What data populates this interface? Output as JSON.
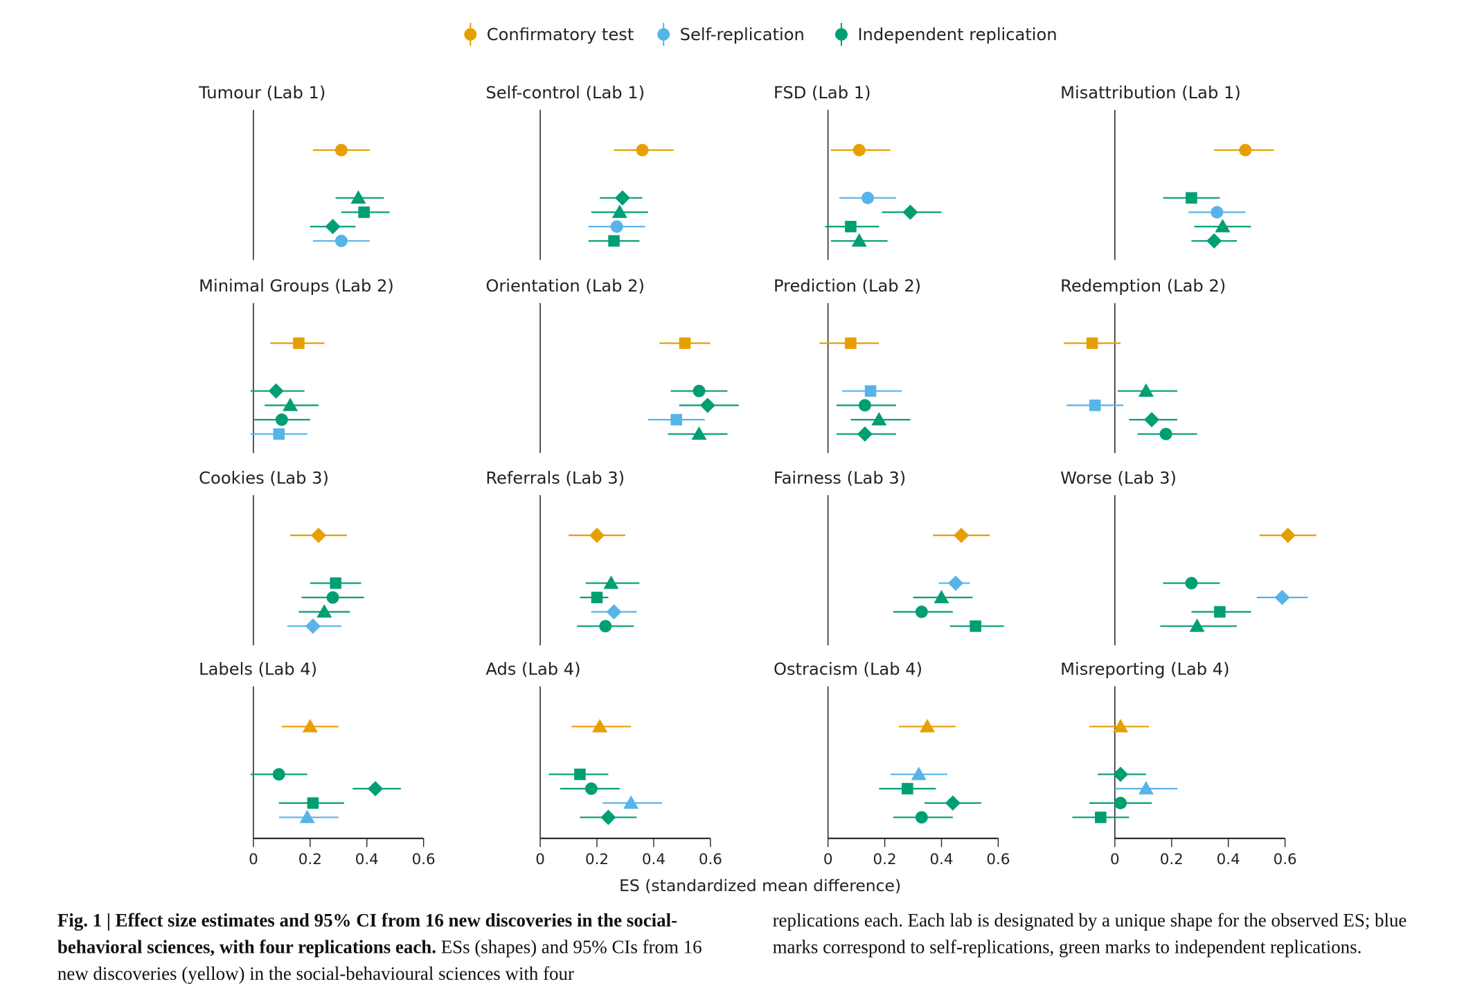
{
  "colors": {
    "confirmatory": "#E69F00",
    "self": "#56B4E9",
    "independent": "#009E73"
  },
  "legend": [
    {
      "key": "confirmatory",
      "label": "Confirmatory test"
    },
    {
      "key": "self",
      "label": "Self-replication"
    },
    {
      "key": "independent",
      "label": "Independent replication"
    }
  ],
  "chart_data": {
    "type": "forest",
    "xlabel": "ES (standardized mean difference)",
    "xlim": [
      -0.05,
      0.6
    ],
    "xticks": [
      0,
      0.2,
      0.4,
      0.6
    ],
    "xtick_labels": [
      "0",
      "0.2",
      "0.4",
      "0.6"
    ],
    "grid": false,
    "legend_position": "top",
    "panels": [
      {
        "title": "Tumour (Lab 1)",
        "points": [
          {
            "group": "confirmatory",
            "shape": "circle",
            "es": 0.31,
            "lo": 0.21,
            "hi": 0.41
          },
          {
            "group": "independent",
            "shape": "triangle",
            "es": 0.37,
            "lo": 0.29,
            "hi": 0.46
          },
          {
            "group": "independent",
            "shape": "square",
            "es": 0.39,
            "lo": 0.31,
            "hi": 0.48
          },
          {
            "group": "independent",
            "shape": "diamond",
            "es": 0.28,
            "lo": 0.2,
            "hi": 0.36
          },
          {
            "group": "self",
            "shape": "circle",
            "es": 0.31,
            "lo": 0.21,
            "hi": 0.41
          }
        ]
      },
      {
        "title": "Self-control (Lab 1)",
        "points": [
          {
            "group": "confirmatory",
            "shape": "circle",
            "es": 0.36,
            "lo": 0.26,
            "hi": 0.47
          },
          {
            "group": "independent",
            "shape": "diamond",
            "es": 0.29,
            "lo": 0.21,
            "hi": 0.36
          },
          {
            "group": "independent",
            "shape": "triangle",
            "es": 0.28,
            "lo": 0.18,
            "hi": 0.38
          },
          {
            "group": "self",
            "shape": "circle",
            "es": 0.27,
            "lo": 0.17,
            "hi": 0.37
          },
          {
            "group": "independent",
            "shape": "square",
            "es": 0.26,
            "lo": 0.17,
            "hi": 0.35
          }
        ]
      },
      {
        "title": "FSD (Lab 1)",
        "points": [
          {
            "group": "confirmatory",
            "shape": "circle",
            "es": 0.11,
            "lo": 0.01,
            "hi": 0.22
          },
          {
            "group": "self",
            "shape": "circle",
            "es": 0.14,
            "lo": 0.04,
            "hi": 0.24
          },
          {
            "group": "independent",
            "shape": "diamond",
            "es": 0.29,
            "lo": 0.19,
            "hi": 0.4
          },
          {
            "group": "independent",
            "shape": "square",
            "es": 0.08,
            "lo": -0.01,
            "hi": 0.18
          },
          {
            "group": "independent",
            "shape": "triangle",
            "es": 0.11,
            "lo": 0.01,
            "hi": 0.21
          }
        ]
      },
      {
        "title": "Misattribution (Lab 1)",
        "points": [
          {
            "group": "confirmatory",
            "shape": "circle",
            "es": 0.46,
            "lo": 0.35,
            "hi": 0.56
          },
          {
            "group": "independent",
            "shape": "square",
            "es": 0.27,
            "lo": 0.17,
            "hi": 0.37
          },
          {
            "group": "self",
            "shape": "circle",
            "es": 0.36,
            "lo": 0.26,
            "hi": 0.46
          },
          {
            "group": "independent",
            "shape": "triangle",
            "es": 0.38,
            "lo": 0.28,
            "hi": 0.48
          },
          {
            "group": "independent",
            "shape": "diamond",
            "es": 0.35,
            "lo": 0.27,
            "hi": 0.43
          }
        ]
      },
      {
        "title": "Minimal Groups (Lab 2)",
        "points": [
          {
            "group": "confirmatory",
            "shape": "square",
            "es": 0.16,
            "lo": 0.06,
            "hi": 0.25
          },
          {
            "group": "independent",
            "shape": "diamond",
            "es": 0.08,
            "lo": -0.01,
            "hi": 0.18
          },
          {
            "group": "independent",
            "shape": "triangle",
            "es": 0.13,
            "lo": 0.04,
            "hi": 0.23
          },
          {
            "group": "independent",
            "shape": "circle",
            "es": 0.1,
            "lo": 0.0,
            "hi": 0.2
          },
          {
            "group": "self",
            "shape": "square",
            "es": 0.09,
            "lo": -0.01,
            "hi": 0.19
          }
        ]
      },
      {
        "title": "Orientation (Lab 2)",
        "points": [
          {
            "group": "confirmatory",
            "shape": "square",
            "es": 0.51,
            "lo": 0.42,
            "hi": 0.6
          },
          {
            "group": "independent",
            "shape": "circle",
            "es": 0.56,
            "lo": 0.46,
            "hi": 0.66
          },
          {
            "group": "independent",
            "shape": "diamond",
            "es": 0.59,
            "lo": 0.49,
            "hi": 0.7
          },
          {
            "group": "self",
            "shape": "square",
            "es": 0.48,
            "lo": 0.38,
            "hi": 0.58
          },
          {
            "group": "independent",
            "shape": "triangle",
            "es": 0.56,
            "lo": 0.45,
            "hi": 0.66
          }
        ]
      },
      {
        "title": "Prediction (Lab 2)",
        "points": [
          {
            "group": "confirmatory",
            "shape": "square",
            "es": 0.08,
            "lo": -0.03,
            "hi": 0.18
          },
          {
            "group": "self",
            "shape": "square",
            "es": 0.15,
            "lo": 0.05,
            "hi": 0.26
          },
          {
            "group": "independent",
            "shape": "circle",
            "es": 0.13,
            "lo": 0.03,
            "hi": 0.24
          },
          {
            "group": "independent",
            "shape": "triangle",
            "es": 0.18,
            "lo": 0.08,
            "hi": 0.29
          },
          {
            "group": "independent",
            "shape": "diamond",
            "es": 0.13,
            "lo": 0.03,
            "hi": 0.24
          }
        ]
      },
      {
        "title": "Redemption (Lab 2)",
        "points": [
          {
            "group": "confirmatory",
            "shape": "square",
            "es": -0.08,
            "lo": -0.18,
            "hi": 0.02
          },
          {
            "group": "independent",
            "shape": "triangle",
            "es": 0.11,
            "lo": 0.01,
            "hi": 0.22
          },
          {
            "group": "self",
            "shape": "square",
            "es": -0.07,
            "lo": -0.17,
            "hi": 0.03
          },
          {
            "group": "independent",
            "shape": "diamond",
            "es": 0.13,
            "lo": 0.05,
            "hi": 0.22
          },
          {
            "group": "independent",
            "shape": "circle",
            "es": 0.18,
            "lo": 0.08,
            "hi": 0.29
          }
        ]
      },
      {
        "title": "Cookies (Lab 3)",
        "points": [
          {
            "group": "confirmatory",
            "shape": "diamond",
            "es": 0.23,
            "lo": 0.13,
            "hi": 0.33
          },
          {
            "group": "independent",
            "shape": "square",
            "es": 0.29,
            "lo": 0.2,
            "hi": 0.38
          },
          {
            "group": "independent",
            "shape": "circle",
            "es": 0.28,
            "lo": 0.17,
            "hi": 0.39
          },
          {
            "group": "independent",
            "shape": "triangle",
            "es": 0.25,
            "lo": 0.16,
            "hi": 0.34
          },
          {
            "group": "self",
            "shape": "diamond",
            "es": 0.21,
            "lo": 0.12,
            "hi": 0.31
          }
        ]
      },
      {
        "title": "Referrals (Lab 3)",
        "points": [
          {
            "group": "confirmatory",
            "shape": "diamond",
            "es": 0.2,
            "lo": 0.1,
            "hi": 0.3
          },
          {
            "group": "independent",
            "shape": "triangle",
            "es": 0.25,
            "lo": 0.16,
            "hi": 0.35
          },
          {
            "group": "independent",
            "shape": "square",
            "es": 0.2,
            "lo": 0.14,
            "hi": 0.24
          },
          {
            "group": "self",
            "shape": "diamond",
            "es": 0.26,
            "lo": 0.18,
            "hi": 0.34
          },
          {
            "group": "independent",
            "shape": "circle",
            "es": 0.23,
            "lo": 0.13,
            "hi": 0.33
          }
        ]
      },
      {
        "title": "Fairness (Lab 3)",
        "points": [
          {
            "group": "confirmatory",
            "shape": "diamond",
            "es": 0.47,
            "lo": 0.37,
            "hi": 0.57
          },
          {
            "group": "self",
            "shape": "diamond",
            "es": 0.45,
            "lo": 0.39,
            "hi": 0.5
          },
          {
            "group": "independent",
            "shape": "triangle",
            "es": 0.4,
            "lo": 0.3,
            "hi": 0.51
          },
          {
            "group": "independent",
            "shape": "circle",
            "es": 0.33,
            "lo": 0.23,
            "hi": 0.44
          },
          {
            "group": "independent",
            "shape": "square",
            "es": 0.52,
            "lo": 0.43,
            "hi": 0.62
          }
        ]
      },
      {
        "title": "Worse (Lab 3)",
        "points": [
          {
            "group": "confirmatory",
            "shape": "diamond",
            "es": 0.61,
            "lo": 0.51,
            "hi": 0.71
          },
          {
            "group": "independent",
            "shape": "circle",
            "es": 0.27,
            "lo": 0.17,
            "hi": 0.37
          },
          {
            "group": "self",
            "shape": "diamond",
            "es": 0.59,
            "lo": 0.5,
            "hi": 0.68
          },
          {
            "group": "independent",
            "shape": "square",
            "es": 0.37,
            "lo": 0.27,
            "hi": 0.48
          },
          {
            "group": "independent",
            "shape": "triangle",
            "es": 0.29,
            "lo": 0.16,
            "hi": 0.43
          }
        ]
      },
      {
        "title": "Labels (Lab 4)",
        "points": [
          {
            "group": "confirmatory",
            "shape": "triangle",
            "es": 0.2,
            "lo": 0.1,
            "hi": 0.3
          },
          {
            "group": "independent",
            "shape": "circle",
            "es": 0.09,
            "lo": -0.01,
            "hi": 0.19
          },
          {
            "group": "independent",
            "shape": "diamond",
            "es": 0.43,
            "lo": 0.35,
            "hi": 0.52
          },
          {
            "group": "independent",
            "shape": "square",
            "es": 0.21,
            "lo": 0.09,
            "hi": 0.32
          },
          {
            "group": "self",
            "shape": "triangle",
            "es": 0.19,
            "lo": 0.09,
            "hi": 0.3
          }
        ]
      },
      {
        "title": "Ads (Lab 4)",
        "points": [
          {
            "group": "confirmatory",
            "shape": "triangle",
            "es": 0.21,
            "lo": 0.11,
            "hi": 0.32
          },
          {
            "group": "independent",
            "shape": "square",
            "es": 0.14,
            "lo": 0.03,
            "hi": 0.24
          },
          {
            "group": "independent",
            "shape": "circle",
            "es": 0.18,
            "lo": 0.07,
            "hi": 0.28
          },
          {
            "group": "self",
            "shape": "triangle",
            "es": 0.32,
            "lo": 0.22,
            "hi": 0.43
          },
          {
            "group": "independent",
            "shape": "diamond",
            "es": 0.24,
            "lo": 0.14,
            "hi": 0.34
          }
        ]
      },
      {
        "title": "Ostracism (Lab 4)",
        "points": [
          {
            "group": "confirmatory",
            "shape": "triangle",
            "es": 0.35,
            "lo": 0.25,
            "hi": 0.45
          },
          {
            "group": "self",
            "shape": "triangle",
            "es": 0.32,
            "lo": 0.22,
            "hi": 0.42
          },
          {
            "group": "independent",
            "shape": "square",
            "es": 0.28,
            "lo": 0.18,
            "hi": 0.38
          },
          {
            "group": "independent",
            "shape": "diamond",
            "es": 0.44,
            "lo": 0.34,
            "hi": 0.54
          },
          {
            "group": "independent",
            "shape": "circle",
            "es": 0.33,
            "lo": 0.23,
            "hi": 0.44
          }
        ]
      },
      {
        "title": "Misreporting (Lab 4)",
        "points": [
          {
            "group": "confirmatory",
            "shape": "triangle",
            "es": 0.02,
            "lo": -0.09,
            "hi": 0.12
          },
          {
            "group": "independent",
            "shape": "diamond",
            "es": 0.02,
            "lo": -0.06,
            "hi": 0.11
          },
          {
            "group": "self",
            "shape": "triangle",
            "es": 0.11,
            "lo": 0.0,
            "hi": 0.22
          },
          {
            "group": "independent",
            "shape": "circle",
            "es": 0.02,
            "lo": -0.09,
            "hi": 0.13
          },
          {
            "group": "independent",
            "shape": "square",
            "es": -0.05,
            "lo": -0.15,
            "hi": 0.05
          }
        ]
      }
    ]
  },
  "caption": {
    "bold": "Fig. 1 | Effect size estimates and 95% CI from 16 new discoveries in the social-behavioral sciences, with four replications each.",
    "left_text": " ESs (shapes) and 95% CIs from 16 new discoveries (yellow) in the social-behavioural sciences with four",
    "right_text": "replications each. Each lab is designated by a unique shape for the observed ES; blue marks correspond to self-replications, green marks to independent replications."
  }
}
